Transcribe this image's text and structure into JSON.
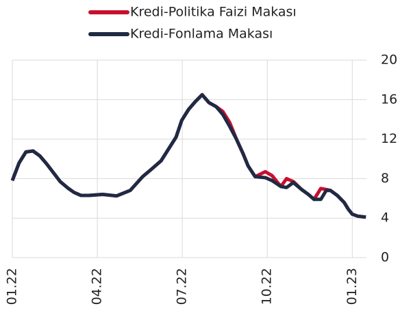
{
  "chart_data": {
    "type": "line",
    "x": [
      0,
      0.24,
      0.48,
      0.73,
      0.97,
      1.21,
      1.45,
      1.69,
      1.98,
      2.18,
      2.42,
      2.71,
      3.19,
      3.68,
      4.16,
      4.6,
      4.89,
      5.25,
      5.78,
      5.98,
      6.22,
      6.46,
      6.7,
      6.94,
      7.19,
      7.43,
      7.67,
      7.91,
      8.15,
      8.32,
      8.57,
      8.93,
      9.17,
      9.48,
      9.68,
      9.92,
      10.21,
      10.45,
      10.65,
      10.89,
      11.08,
      11.23,
      11.47,
      11.71,
      11.86,
      12.0,
      12.19,
      12.48
    ],
    "series": [
      {
        "name": "Kredi-Politika Faizi Makası",
        "color": "#c8102e",
        "values": [
          7.8,
          9.6,
          10.7,
          10.8,
          10.3,
          9.5,
          8.6,
          7.7,
          7.0,
          6.6,
          6.3,
          6.3,
          6.4,
          6.25,
          6.8,
          8.2,
          8.9,
          9.8,
          12.2,
          13.9,
          15.0,
          15.8,
          16.5,
          15.7,
          15.3,
          14.8,
          13.7,
          12.0,
          10.5,
          9.3,
          8.2,
          8.7,
          8.3,
          7.2,
          8.0,
          7.7,
          6.9,
          6.4,
          5.9,
          7.0,
          6.9,
          6.8,
          6.3,
          5.6,
          4.9,
          4.4,
          4.2,
          4.1
        ]
      },
      {
        "name": "Kredi-Fonlama Makası",
        "color": "#1f2a44",
        "values": [
          7.8,
          9.6,
          10.7,
          10.8,
          10.3,
          9.5,
          8.6,
          7.7,
          7.0,
          6.6,
          6.3,
          6.3,
          6.4,
          6.25,
          6.8,
          8.2,
          8.9,
          9.8,
          12.2,
          13.9,
          15.0,
          15.8,
          16.5,
          15.7,
          15.3,
          14.5,
          13.3,
          12.0,
          10.5,
          9.3,
          8.2,
          8.1,
          7.8,
          7.2,
          7.1,
          7.6,
          6.9,
          6.4,
          5.9,
          5.9,
          6.8,
          6.8,
          6.3,
          5.6,
          4.9,
          4.4,
          4.2,
          4.1
        ]
      }
    ],
    "xlim": [
      0,
      12.5
    ],
    "xticks": [
      {
        "value": 0,
        "label": "01.22"
      },
      {
        "value": 3,
        "label": "04.22"
      },
      {
        "value": 6,
        "label": "07.22"
      },
      {
        "value": 9,
        "label": "10.22"
      },
      {
        "value": 12,
        "label": "01.23"
      }
    ],
    "ylim": [
      0,
      20
    ],
    "yticks": [
      0,
      4,
      8,
      12,
      16,
      20
    ],
    "grid": true
  }
}
